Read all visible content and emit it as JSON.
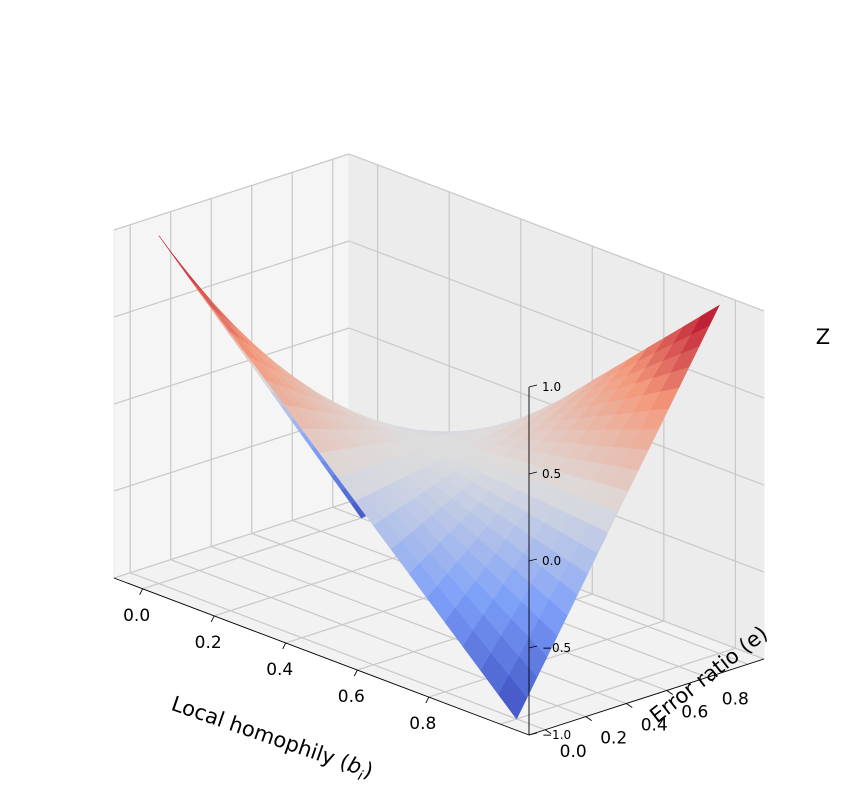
{
  "chart_data": {
    "type": "surface",
    "surface_function": "z = 1 - 2*(b_i + e) + 4*b_i*e",
    "colormap": "coolwarm",
    "grid_resolution": 20,
    "xlabel": "Local homophily (",
    "xlabel_var": "b",
    "xlabel_sub": "i",
    "xlabel_close": ")",
    "ylabel": "Error ratio (e)",
    "zlabel": "Z",
    "xlim": [
      0,
      1
    ],
    "ylim": [
      0,
      1
    ],
    "zlim": [
      -1,
      1
    ],
    "x_ticks": [
      "0.0",
      "0.2",
      "0.4",
      "0.6",
      "0.8"
    ],
    "y_ticks": [
      "0.0",
      "0.2",
      "0.4",
      "0.6",
      "0.8"
    ],
    "z_ticks": [
      "−1.0",
      "−0.5",
      "0.0",
      "0.5",
      "1.0"
    ],
    "corner_values": [
      {
        "b_i": 0,
        "e": 0,
        "z": 1
      },
      {
        "b_i": 1,
        "e": 0,
        "z": -1
      },
      {
        "b_i": 0,
        "e": 1,
        "z": -1
      },
      {
        "b_i": 1,
        "e": 1,
        "z": 1
      }
    ],
    "grid": true
  }
}
